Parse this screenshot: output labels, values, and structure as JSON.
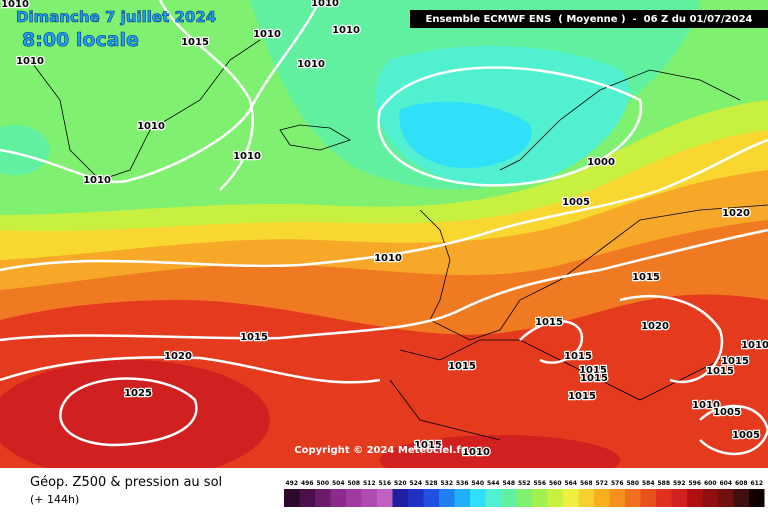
{
  "header": {
    "date": "Dimanche 7 juillet 2024",
    "time": "8:00 locale",
    "model": "Ensemble ECMWF ENS  ( Moyenne )  -  06 Z du 01/07/2024"
  },
  "copyright": "Copyright © 2024 Meteociel.fr",
  "footer": {
    "title": "Géop. Z500 & pression au sol",
    "subtitle": "(+ 144h)"
  },
  "isobar_labels": [
    1010,
    1010,
    1015,
    1010,
    1010,
    1010,
    1010,
    1010,
    1010,
    1010,
    1000,
    1005,
    1020,
    1010,
    1015,
    1015,
    1020,
    1015,
    1020,
    1015,
    1015,
    1015,
    1015,
    1015,
    1015,
    1010,
    1025,
    1015,
    1010,
    1005,
    1005,
    1015,
    1010
  ],
  "colorbar": {
    "values": [
      492,
      496,
      500,
      504,
      508,
      512,
      516,
      520,
      524,
      528,
      532,
      536,
      540,
      544,
      548,
      552,
      556,
      560,
      564,
      568,
      572,
      576,
      580,
      584,
      588,
      592,
      596,
      600,
      604,
      608,
      612
    ],
    "colors": [
      "#2d0a2d",
      "#4b0f4b",
      "#6a1b6a",
      "#8b2a8b",
      "#a03aa0",
      "#b04cb0",
      "#c060c0",
      "#2020a0",
      "#2030c0",
      "#2050e0",
      "#2080f0",
      "#20b0f8",
      "#30e0f8",
      "#50f0d0",
      "#60f0a0",
      "#80f070",
      "#a0f050",
      "#c8f040",
      "#f0f040",
      "#f8d030",
      "#f8b020",
      "#f89020",
      "#f07020",
      "#e85020",
      "#e03020",
      "#d02020",
      "#b01010",
      "#901010",
      "#701010",
      "#401010",
      "#100000"
    ]
  }
}
